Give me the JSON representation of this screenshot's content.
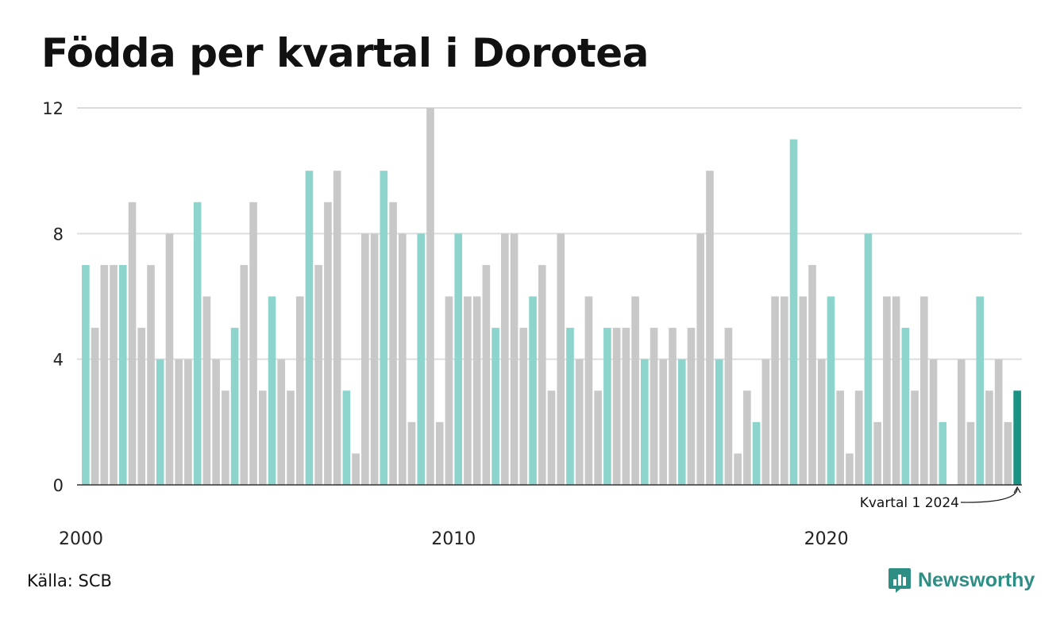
{
  "title": "Födda per kvartal i Dorotea",
  "source": "Källa: SCB",
  "brand": "Newsworthy",
  "colors": {
    "q1": "#8dd4cc",
    "other": "#c8c8c8",
    "highlight": "#1a9385",
    "grid": "#dddddd",
    "axis": "#333333",
    "brand": "#2e8e84"
  },
  "chart_data": {
    "type": "bar",
    "start_year": 2000,
    "x_tick_labels": [
      "2000",
      "2010",
      "2020"
    ],
    "y_ticks": [
      0,
      4,
      8,
      12
    ],
    "ylim": [
      0,
      12
    ],
    "grid": true,
    "annotation": "Kvartal 1 2024",
    "values": [
      7,
      5,
      7,
      7,
      7,
      9,
      5,
      7,
      4,
      8,
      4,
      4,
      9,
      6,
      4,
      3,
      5,
      7,
      9,
      3,
      6,
      4,
      3,
      6,
      10,
      7,
      9,
      10,
      3,
      1,
      8,
      8,
      10,
      9,
      8,
      2,
      8,
      12,
      2,
      6,
      8,
      6,
      6,
      7,
      5,
      8,
      8,
      5,
      6,
      7,
      3,
      8,
      5,
      4,
      6,
      3,
      5,
      5,
      5,
      6,
      4,
      5,
      4,
      5,
      4,
      5,
      8,
      10,
      4,
      5,
      1,
      3,
      2,
      4,
      6,
      6,
      11,
      6,
      7,
      4,
      6,
      3,
      1,
      3,
      8,
      2,
      6,
      6,
      5,
      3,
      6,
      4,
      2,
      0,
      4,
      2,
      6,
      3,
      4,
      2,
      3
    ]
  }
}
